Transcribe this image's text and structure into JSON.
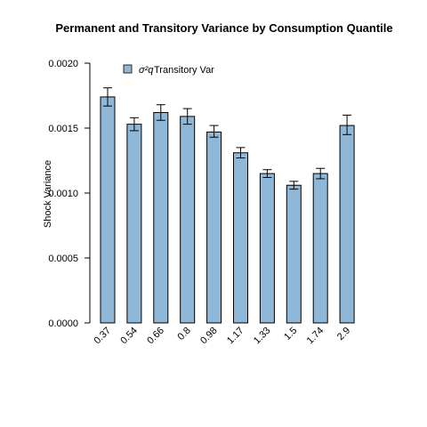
{
  "chart_data": {
    "type": "bar",
    "title": "Permanent and Transitory Variance by  Consumption Quantile",
    "ylabel": "Shock Variance",
    "xlabel": "",
    "categories": [
      "0.37",
      "0.54",
      "0.66",
      "0.8",
      "0.98",
      "1.17",
      "1.33",
      "1.5",
      "1.74",
      "2.9"
    ],
    "series": [
      {
        "name": "Transitory Var",
        "legend_symbol": "σ²q",
        "color": "#8fb8d8",
        "values": [
          0.00174,
          0.00153,
          0.00162,
          0.00159,
          0.00147,
          0.00131,
          0.00115,
          0.00106,
          0.00115,
          0.00152
        ],
        "error_low": [
          0.00167,
          0.00148,
          0.00156,
          0.00153,
          0.00143,
          0.00127,
          0.00112,
          0.00103,
          0.00111,
          0.00145
        ],
        "error_high": [
          0.00181,
          0.00158,
          0.00168,
          0.00165,
          0.00152,
          0.00135,
          0.00118,
          0.00109,
          0.00119,
          0.0016
        ]
      }
    ],
    "ylim": [
      0,
      0.002
    ],
    "yticks": [
      "0.0000",
      "0.0005",
      "0.0010",
      "0.0015",
      "0.0020"
    ],
    "ytick_values": [
      0,
      0.0005,
      0.001,
      0.0015,
      0.002
    ],
    "grid": false,
    "legend_position": "top-left"
  }
}
